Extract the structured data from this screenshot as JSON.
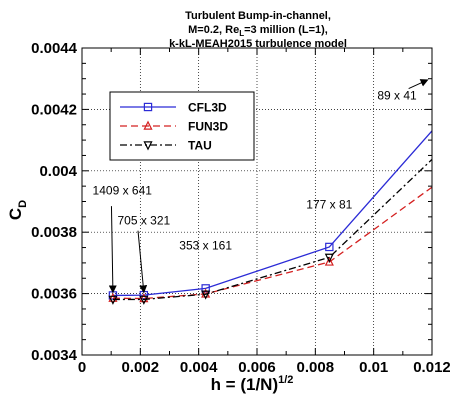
{
  "chart_data": {
    "type": "line",
    "title_lines": [
      "Turbulent Bump-in-channel,",
      "M=0.2, Re",
      "=3 million (L=1),",
      "k-kL-MEAH2015 turbulence model"
    ],
    "title_sub": "L",
    "xlabel_main": "h = (1/N)",
    "xlabel_sup": "1/2",
    "ylabel_main": "C",
    "ylabel_sub": "D",
    "xlim": [
      0,
      0.012
    ],
    "ylim": [
      0.0034,
      0.0044
    ],
    "xticks": [
      0,
      0.002,
      0.004,
      0.006,
      0.008,
      0.01,
      0.012
    ],
    "xtick_labels": [
      "0",
      "0.002",
      "0.004",
      "0.006",
      "0.008",
      "0.01",
      "0.012"
    ],
    "yticks": [
      0.0034,
      0.0036,
      0.0038,
      0.004,
      0.0042,
      0.0044
    ],
    "ytick_labels": [
      "0.0034",
      "0.0036",
      "0.0038",
      "0.004",
      "0.0042",
      "0.0044"
    ],
    "grid": true,
    "legend_placement": "upper-left",
    "series": [
      {
        "name": "CFL3D",
        "color": "#2b2bd6",
        "dash": "solid",
        "marker": "square",
        "x": [
          0.00106,
          0.00212,
          0.00424,
          0.00848,
          0.01212
        ],
        "y": [
          0.003594,
          0.003595,
          0.003617,
          0.003752,
          0.004143
        ]
      },
      {
        "name": "FUN3D",
        "color": "#d42020",
        "dash": "dashed",
        "marker": "triangle-up",
        "x": [
          0.00106,
          0.00212,
          0.00424,
          0.00848,
          0.01212
        ],
        "y": [
          0.003585,
          0.003584,
          0.003599,
          0.003703,
          0.003955
        ]
      },
      {
        "name": "TAU",
        "color": "#000000",
        "dash": "dashdot",
        "marker": "triangle-down",
        "x": [
          0.00106,
          0.00212,
          0.00424,
          0.00848,
          0.01212
        ],
        "y": [
          0.003581,
          0.003581,
          0.003598,
          0.003718,
          0.004048
        ]
      }
    ],
    "annotations": [
      {
        "text": "1409 x 641",
        "at": [
          0.00106,
          0.003594
        ],
        "label_at": [
          0.00138,
          0.003923
        ]
      },
      {
        "text": "705 x 321",
        "at": [
          0.00212,
          0.003595
        ],
        "label_at": [
          0.00212,
          0.003825
        ]
      },
      {
        "text": "353 x 161",
        "at": [
          0.00424,
          0.003617
        ],
        "label_at": [
          0.00424,
          0.003744
        ]
      },
      {
        "text": "177 x 81",
        "at": [
          0.00848,
          0.003752
        ],
        "label_at": [
          0.00848,
          0.003878
        ]
      },
      {
        "text": "89 x 41",
        "at": [
          0.01212,
          0.004143
        ],
        "label_at": [
          0.0108,
          0.004232
        ]
      }
    ]
  }
}
